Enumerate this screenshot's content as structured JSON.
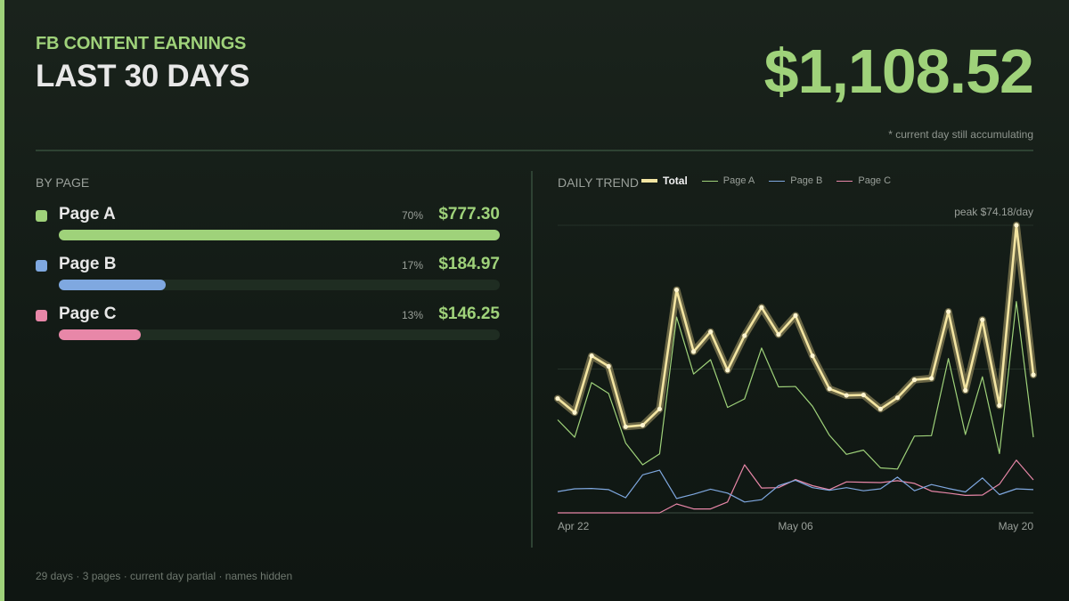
{
  "header": {
    "kicker": "FB CONTENT EARNINGS",
    "headline": "LAST 30 DAYS",
    "total": "$1,108.52",
    "note": "* current day still accumulating"
  },
  "by_page": {
    "title": "BY PAGE",
    "pages": [
      {
        "name": "Page A",
        "pct": "70%",
        "amount": "$777.30",
        "share": 0.7,
        "color": "#9fd27a"
      },
      {
        "name": "Page B",
        "pct": "17%",
        "amount": "$184.97",
        "share": 0.17,
        "color": "#7fa8e0"
      },
      {
        "name": "Page C",
        "pct": "13%",
        "amount": "$146.25",
        "share": 0.13,
        "color": "#e887a8"
      }
    ]
  },
  "trend": {
    "title": "DAILY TREND",
    "peak_label": "peak $74.18/day"
  },
  "chart_data": {
    "type": "line",
    "x": [
      "Apr 22",
      "Apr 23",
      "Apr 24",
      "Apr 25",
      "Apr 26",
      "Apr 27",
      "Apr 28",
      "Apr 29",
      "Apr 30",
      "May 01",
      "May 02",
      "May 03",
      "May 04",
      "May 05",
      "May 06",
      "May 07",
      "May 08",
      "May 09",
      "May 10",
      "May 11",
      "May 12",
      "May 13",
      "May 14",
      "May 15",
      "May 16",
      "May 17",
      "May 18",
      "May 19",
      "May 20"
    ],
    "x_ticks": [
      "Apr 22",
      "May 06",
      "May 20"
    ],
    "ylim": [
      0,
      74.18
    ],
    "grid": true,
    "legend_position": "top",
    "series": [
      {
        "name": "Total",
        "color": "#f3e5a2",
        "values": [
          29.5,
          25.9,
          40.5,
          37.8,
          22.2,
          22.6,
          26.8,
          57.5,
          41.6,
          46.7,
          36.8,
          45.7,
          53.0,
          46.0,
          50.9,
          40.5,
          32.0,
          30.3,
          30.4,
          26.8,
          29.7,
          34.3,
          34.7,
          51.9,
          31.6,
          49.8,
          27.7,
          74.2,
          35.6
        ]
      },
      {
        "name": "Page A",
        "color": "#9fd27a",
        "values": [
          24.0,
          19.5,
          33.6,
          30.8,
          18.0,
          12.4,
          15.2,
          50.5,
          35.8,
          39.5,
          27.2,
          29.4,
          42.5,
          32.5,
          32.6,
          27.5,
          20.0,
          15.1,
          16.2,
          11.6,
          11.3,
          19.8,
          19.9,
          39.8,
          20.2,
          35.1,
          15.3,
          54.5,
          19.5
        ]
      },
      {
        "name": "Page B",
        "color": "#7fa8e0",
        "values": [
          5.5,
          6.2,
          6.3,
          6.0,
          3.9,
          9.8,
          11.0,
          3.7,
          4.8,
          6.1,
          5.1,
          2.8,
          3.4,
          7.0,
          8.4,
          6.5,
          5.8,
          6.5,
          5.7,
          6.2,
          9.2,
          5.7,
          7.3,
          6.3,
          5.4,
          9.0,
          4.7,
          6.2,
          6.0
        ]
      },
      {
        "name": "Page C",
        "color": "#e887a8",
        "values": [
          0,
          0,
          0,
          0,
          0,
          0,
          0,
          2.3,
          1.0,
          1.0,
          2.8,
          12.4,
          6.4,
          6.5,
          8.6,
          7.0,
          6.0,
          8.0,
          7.9,
          7.8,
          8.3,
          7.6,
          5.6,
          5.1,
          4.5,
          4.6,
          7.4,
          13.6,
          8.5
        ]
      }
    ]
  },
  "footer": {
    "stats": "29 days  ·  3 pages  ·  current day partial  ·  names hidden"
  }
}
